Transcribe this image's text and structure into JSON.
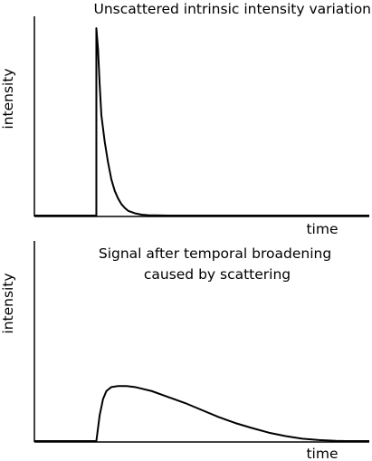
{
  "chart_data": [
    {
      "type": "line",
      "title": "Unscattered intrinsic intensity variation",
      "xlabel": "time",
      "ylabel": "intensity",
      "xlim": [
        0,
        10
      ],
      "ylim": [
        0,
        1.0
      ],
      "grid": false,
      "legend": "none",
      "series": [
        {
          "x": [
            0.0,
            1.85,
            1.85,
            1.9,
            1.95,
            2.0,
            2.1,
            2.2,
            2.3,
            2.4,
            2.5,
            2.6,
            2.7,
            2.8,
            3.0,
            3.2,
            3.4,
            3.6,
            4.0,
            10.0
          ],
          "y": [
            0.0,
            0.0,
            0.99,
            0.88,
            0.69,
            0.53,
            0.39,
            0.28,
            0.19,
            0.13,
            0.09,
            0.06,
            0.04,
            0.025,
            0.012,
            0.005,
            0.002,
            0.001,
            0.0,
            0.0
          ]
        }
      ]
    },
    {
      "type": "line",
      "title": "Signal after temporal broadening\ncaused by scattering",
      "xlabel": "time",
      "ylabel": "intensity",
      "xlim": [
        0,
        10
      ],
      "ylim": [
        0,
        1.0
      ],
      "grid": false,
      "legend": "none",
      "series": [
        {
          "x": [
            0.0,
            1.85,
            1.95,
            2.05,
            2.15,
            2.3,
            2.5,
            2.75,
            3.0,
            3.5,
            4.0,
            4.5,
            5.0,
            5.5,
            6.0,
            6.5,
            7.0,
            7.5,
            8.0,
            8.5,
            9.0,
            9.3,
            10.0
          ],
          "y": [
            0.0,
            0.0,
            0.13,
            0.21,
            0.25,
            0.27,
            0.275,
            0.275,
            0.27,
            0.25,
            0.22,
            0.19,
            0.155,
            0.12,
            0.09,
            0.065,
            0.042,
            0.025,
            0.012,
            0.005,
            0.001,
            0.0,
            0.0
          ]
        }
      ]
    }
  ]
}
